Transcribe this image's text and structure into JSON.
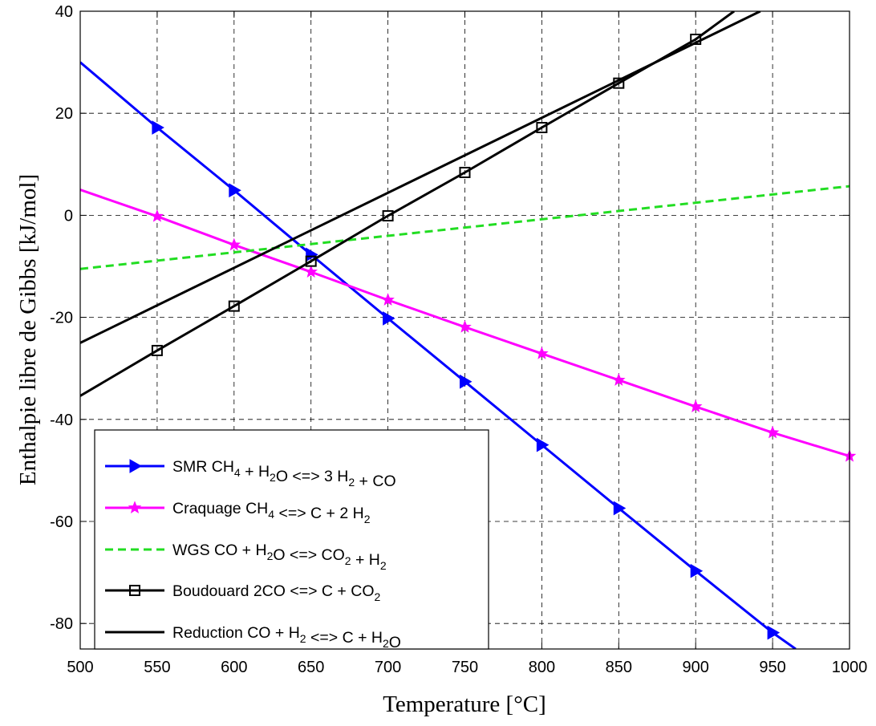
{
  "chart_data": {
    "type": "line",
    "xlabel": "Temperature [°C]",
    "ylabel": "Enthalpie libre de Gibbs [kJ/mol]",
    "xlim": [
      500,
      1000
    ],
    "ylim": [
      -85,
      40
    ],
    "xticks": [
      500,
      550,
      600,
      650,
      700,
      750,
      800,
      850,
      900,
      950,
      1000
    ],
    "yticks": [
      -80,
      -60,
      -40,
      -20,
      0,
      20,
      40
    ],
    "grid": true,
    "legend_position": "bottom-left",
    "series": [
      {
        "key": "smr",
        "name": "SMR CH4 + H2O <=> 3 H2 + CO",
        "color": "#0000ff",
        "line_style": "solid",
        "marker": "triangle-right",
        "marker_x": [
          550,
          600,
          650,
          700,
          750,
          800,
          850,
          900,
          950
        ],
        "x": [
          500,
          550,
          600,
          650,
          700,
          750,
          800,
          850,
          900,
          950,
          965
        ],
        "y": [
          30,
          17.2,
          4.9,
          -7.7,
          -20.2,
          -32.6,
          -45.0,
          -57.4,
          -69.7,
          -81.8,
          -85
        ]
      },
      {
        "key": "craquage",
        "name": "Craquage CH4 <=> C + 2 H2",
        "color": "#ff00ff",
        "line_style": "solid",
        "marker": "star",
        "marker_x": [
          550,
          600,
          650,
          700,
          750,
          800,
          850,
          900,
          950,
          1000
        ],
        "x": [
          500,
          550,
          600,
          650,
          700,
          750,
          800,
          850,
          900,
          950,
          1000
        ],
        "y": [
          5.0,
          -0.2,
          -5.8,
          -11.1,
          -16.6,
          -21.9,
          -27.1,
          -32.3,
          -37.5,
          -42.6,
          -47.2
        ]
      },
      {
        "key": "wgs",
        "name": "WGS CO + H2O <=> CO2 + H2",
        "color": "#22dd22",
        "line_style": "dashed",
        "marker": "none",
        "marker_x": [],
        "x": [
          500,
          1000
        ],
        "y": [
          -10.5,
          5.7
        ]
      },
      {
        "key": "boudouard",
        "name": "Boudouard 2CO <=> C + CO2",
        "color": "#000000",
        "line_style": "solid",
        "marker": "square",
        "marker_x": [
          550,
          600,
          650,
          700,
          750,
          800,
          850,
          900
        ],
        "x": [
          500,
          550,
          600,
          650,
          700,
          750,
          800,
          850,
          900,
          925
        ],
        "y": [
          -35.4,
          -26.5,
          -17.8,
          -9.0,
          -0.1,
          8.4,
          17.2,
          25.9,
          34.5,
          40
        ]
      },
      {
        "key": "reduction",
        "name": "Reduction CO + H2 <=> C + H2O",
        "color": "#000000",
        "line_style": "solid",
        "marker": "none",
        "marker_x": [],
        "x": [
          500,
          942
        ],
        "y": [
          -25,
          40
        ]
      }
    ]
  }
}
